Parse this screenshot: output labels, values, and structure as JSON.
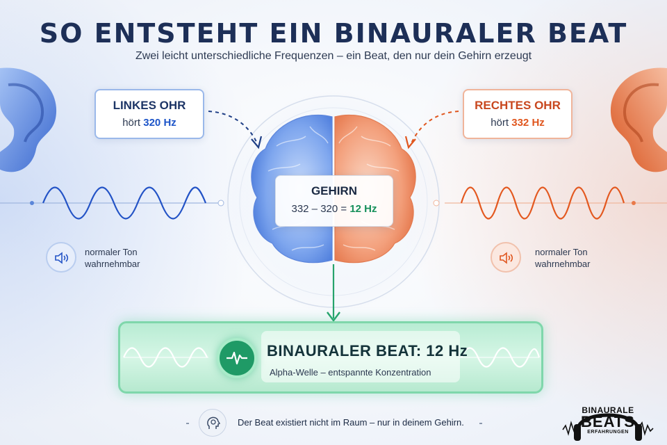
{
  "title": "SO ENTSTEHT EIN BINAURALER BEAT",
  "subtitle": "Zwei leicht unterschiedliche Frequenzen – ein Beat, den nur dein Gehirn erzeugt",
  "left_ear": {
    "title": "LINKES OHR",
    "prefix": "hört",
    "frequency": "320 Hz",
    "color": "#1d55c8",
    "note_line1": "normaler Ton",
    "note_line2": "wahrnehmbar"
  },
  "right_ear": {
    "title": "RECHTES OHR",
    "prefix": "hört",
    "frequency": "332 Hz",
    "color": "#e0561e",
    "note_line1": "normaler Ton",
    "note_line2": "wahrnehmbar"
  },
  "brain": {
    "title": "GEHIRN",
    "calculation": "332 – 320 =",
    "result": "12 Hz"
  },
  "beat": {
    "title": "BINAURALER BEAT: 12 Hz",
    "subtitle": "Alpha-Welle – entspannte Konzentration",
    "color": "#1f9a66"
  },
  "footer": {
    "text": "Der Beat existiert nicht im Raum – nur in deinem Gehirn."
  },
  "logo": {
    "line1": "BINAURALE",
    "line2": "BEATS",
    "line3": "ERFAHRUNGEN"
  },
  "icons": [
    "ear-icon",
    "speaker-icon",
    "brain-icon",
    "pulse-icon",
    "head-brain-icon",
    "headphones-icon"
  ]
}
